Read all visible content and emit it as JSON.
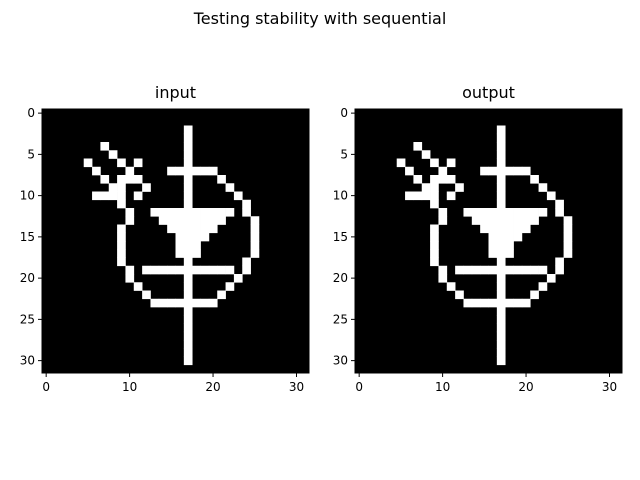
{
  "figure": {
    "suptitle": "Testing stability with sequential"
  },
  "colors": {
    "on": "#ffffff",
    "off": "#000000",
    "text": "#000000"
  },
  "chart_data": [
    {
      "type": "heatmap",
      "title": "input",
      "cmap": "gray",
      "xlim": [
        -0.5,
        31.5
      ],
      "ylim": [
        31.5,
        -0.5
      ],
      "xticks": [
        0,
        10,
        20,
        30
      ],
      "yticks": [
        0,
        5,
        10,
        15,
        20,
        25,
        30
      ],
      "grid": false,
      "rows": [
        "00000000000000000000000000000000",
        "00000000000000000000000000000000",
        "00000000000000000100000000000000",
        "00000000000000000100000000000000",
        "00000001000000000100000000000000",
        "00000000100000000100000000000000",
        "00000100010100000100000000000000",
        "00000010001000011111100000000000",
        "00000001011100000100010000000000",
        "00000000110010000100001000000000",
        "00000011110100000100000100000000",
        "00000000010000000100000010000000",
        "00000000001000000100000010000000",
        "00000000001000000100000001000000",
        "00000000010000000000000001000000",
        "00000000010000000000000001000000",
        "00000000010000000000000001000000",
        "00000000010000000000000001000000",
        "00000000010000000100000010000000",
        "00000000001000000100000010000000",
        "00000000001000000100000100000000",
        "00000000000100000100001000000000",
        "00000000000010000100010000000000",
        "00000000000001111111100000000000",
        "00000000000000000100000000000000",
        "00000000000000000100000000000000",
        "00000000000000000100000000000000",
        "00000000000000000100000000000000",
        "00000000000000000100000000000000",
        "00000000000000000100000000000000",
        "00000000000000000100000000000000",
        "00000000000000000000000000000000"
      ],
      "overlay_runs": [
        [
          12,
          13,
          22
        ],
        [
          13,
          14,
          21
        ],
        [
          14,
          15,
          20
        ],
        [
          15,
          16,
          19
        ],
        [
          16,
          16,
          18
        ],
        [
          17,
          16,
          18
        ],
        [
          19,
          12,
          22
        ]
      ]
    },
    {
      "type": "heatmap",
      "title": "output",
      "cmap": "gray",
      "xlim": [
        -0.5,
        31.5
      ],
      "ylim": [
        31.5,
        -0.5
      ],
      "xticks": [
        0,
        10,
        20,
        30
      ],
      "yticks": [
        0,
        5,
        10,
        15,
        20,
        25,
        30
      ],
      "grid": false,
      "rows": [
        "00000000000000000000000000000000",
        "00000000000000000000000000000000",
        "00000000000000000100000000000000",
        "00000000000000000100000000000000",
        "00000001000000000100000000000000",
        "00000000100000000100000000000000",
        "00000100010100000100000000000000",
        "00000010001000011111100000000000",
        "00000001011100000100010000000000",
        "00000000110010000100001000000000",
        "00000011110100000100000100000000",
        "00000000010000000100000010000000",
        "00000000001000000100000010000000",
        "00000000001000000100000001000000",
        "00000000010000000000000001000000",
        "00000000010000000000000001000000",
        "00000000010000000000000001000000",
        "00000000010000000000000001000000",
        "00000000010000000100000010000000",
        "00000000001000000100000010000000",
        "00000000001000000100000100000000",
        "00000000000100000100001000000000",
        "00000000000010000100010000000000",
        "00000000000001111111100000000000",
        "00000000000000000100000000000000",
        "00000000000000000100000000000000",
        "00000000000000000100000000000000",
        "00000000000000000100000000000000",
        "00000000000000000100000000000000",
        "00000000000000000100000000000000",
        "00000000000000000100000000000000",
        "00000000000000000000000000000000"
      ],
      "overlay_runs": [
        [
          12,
          13,
          22
        ],
        [
          13,
          14,
          21
        ],
        [
          14,
          15,
          20
        ],
        [
          15,
          16,
          19
        ],
        [
          16,
          16,
          18
        ],
        [
          17,
          16,
          18
        ],
        [
          19,
          12,
          22
        ]
      ]
    }
  ]
}
